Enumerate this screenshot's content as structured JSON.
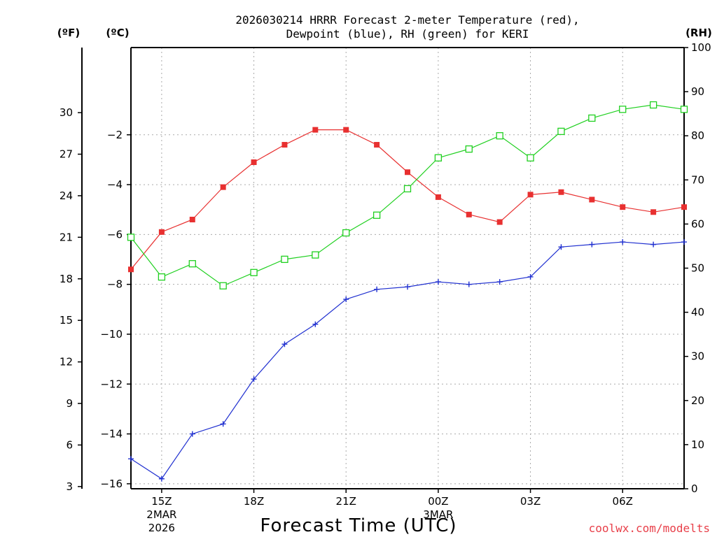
{
  "chart_data": {
    "type": "line",
    "title_line1": "2026030214 HRRR Forecast 2-meter Temperature (red),",
    "title_line2": "Dewpoint (blue), RH (green) for KERI",
    "left_outer_unit": "(ºF)",
    "left_inner_unit": "(ºC)",
    "right_unit": "(RH)",
    "xlabel": "Forecast Time (UTC)",
    "source": "coolwx.com/modelts",
    "x_hours": [
      0,
      1,
      2,
      3,
      4,
      5,
      6,
      7,
      8,
      9,
      10,
      11,
      12,
      13,
      14,
      15,
      16,
      17,
      18
    ],
    "x_ticks": [
      {
        "hour": 1,
        "label": "15Z",
        "date": "2MAR",
        "year": "2026"
      },
      {
        "hour": 4,
        "label": "18Z"
      },
      {
        "hour": 7,
        "label": "21Z"
      },
      {
        "hour": 10,
        "label": "00Z",
        "date": "3MAR"
      },
      {
        "hour": 13,
        "label": "03Z"
      },
      {
        "hour": 16,
        "label": "06Z"
      }
    ],
    "celsius_axis": {
      "range": [
        -16.2,
        1.5
      ],
      "ticks": [
        -16,
        -14,
        -12,
        -10,
        -8,
        -6,
        -4,
        -2
      ]
    },
    "fahrenheit_axis": {
      "ticks": [
        3,
        6,
        9,
        12,
        15,
        18,
        21,
        24,
        27,
        30
      ]
    },
    "rh_axis": {
      "range": [
        0,
        100
      ],
      "ticks": [
        0,
        10,
        20,
        30,
        40,
        50,
        60,
        70,
        80,
        90,
        100
      ]
    },
    "series": [
      {
        "name": "Temperature",
        "unit": "C",
        "color": "#e83030",
        "marker": "filled-square",
        "values": [
          -7.4,
          -5.9,
          -5.4,
          -4.1,
          -3.1,
          -2.4,
          -1.8,
          -1.8,
          -2.4,
          -3.5,
          -4.5,
          -5.2,
          -5.5,
          -4.4,
          -4.3,
          -4.6,
          -4.9,
          -5.1,
          -4.9
        ]
      },
      {
        "name": "Dewpoint",
        "unit": "C",
        "color": "#2030d0",
        "marker": "plus",
        "values": [
          -15.0,
          -15.8,
          -14.0,
          -13.6,
          -11.8,
          -10.4,
          -9.6,
          -8.6,
          -8.2,
          -8.1,
          -7.9,
          -8.0,
          -7.9,
          -7.7,
          -6.5,
          -6.4,
          -6.3,
          -6.4,
          -6.3
        ]
      },
      {
        "name": "RH",
        "unit": "%",
        "color": "#20d020",
        "marker": "open-square",
        "values": [
          57,
          48,
          51,
          46,
          49,
          52,
          53,
          58,
          62,
          68,
          75,
          77,
          80,
          75,
          81,
          84,
          86,
          87,
          86
        ]
      }
    ]
  }
}
